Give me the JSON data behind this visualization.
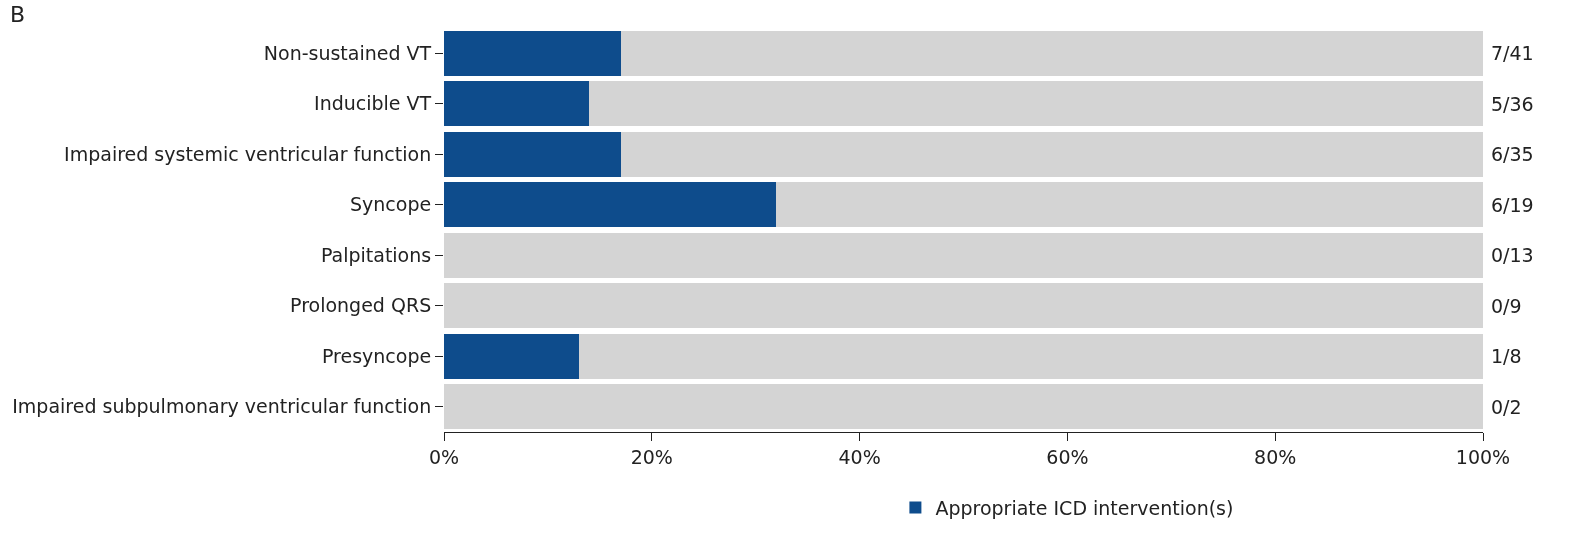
{
  "chart_data": {
    "type": "bar",
    "orientation": "horizontal",
    "stacked": true,
    "categories": [
      "Non-sustained VT",
      "Inducible VT",
      "Impaired systemic ventricular function",
      "Syncope",
      "Palpitations",
      "Prolonged QRS",
      "Presyncope",
      "Impaired subpulmonary ventricular function"
    ],
    "series": [
      {
        "name": "Appropriate ICD intervention(s)",
        "color": "#0e4c8c",
        "values": [
          17,
          14,
          17,
          32,
          0,
          0,
          13,
          0
        ]
      },
      {
        "color": "#d4d4d4",
        "values": [
          83,
          86,
          83,
          68,
          100,
          100,
          87,
          100
        ]
      }
    ],
    "xlim": [
      0,
      100
    ],
    "xticks": [
      {
        "value": 0,
        "label": "0%"
      },
      {
        "value": 20,
        "label": "20%"
      },
      {
        "value": 40,
        "label": "40%"
      },
      {
        "value": 60,
        "label": "60%"
      },
      {
        "value": 80,
        "label": "80%"
      },
      {
        "value": 100,
        "label": "100%"
      }
    ],
    "grid": false,
    "legend": "bottom",
    "annotations": [
      "B",
      "7/41",
      "5/36",
      "6/35",
      "6/19",
      "0/13",
      "0/9",
      "1/8",
      "0/2"
    ]
  }
}
